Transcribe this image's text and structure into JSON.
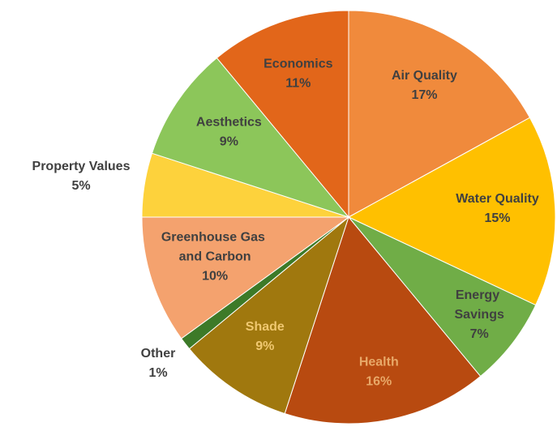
{
  "chart_data": {
    "type": "pie",
    "categories": [
      "Air Quality",
      "Water Quality",
      "Energy Savings",
      "Health",
      "Shade",
      "Other",
      "Greenhouse Gas and Carbon",
      "Property Values",
      "Aesthetics",
      "Economics"
    ],
    "values": [
      17,
      15,
      7,
      16,
      9,
      1,
      10,
      5,
      9,
      11
    ],
    "value_labels": [
      "17%",
      "15%",
      "7%",
      "16%",
      "9%",
      "1%",
      "10%",
      "5%",
      "9%",
      "11%"
    ],
    "colors": [
      "#f08a3c",
      "#ffc000",
      "#70ad47",
      "#b84a10",
      "#a0780e",
      "#3d7a28",
      "#f4a26e",
      "#fdd23c",
      "#8cc65a",
      "#e2661a"
    ]
  }
}
